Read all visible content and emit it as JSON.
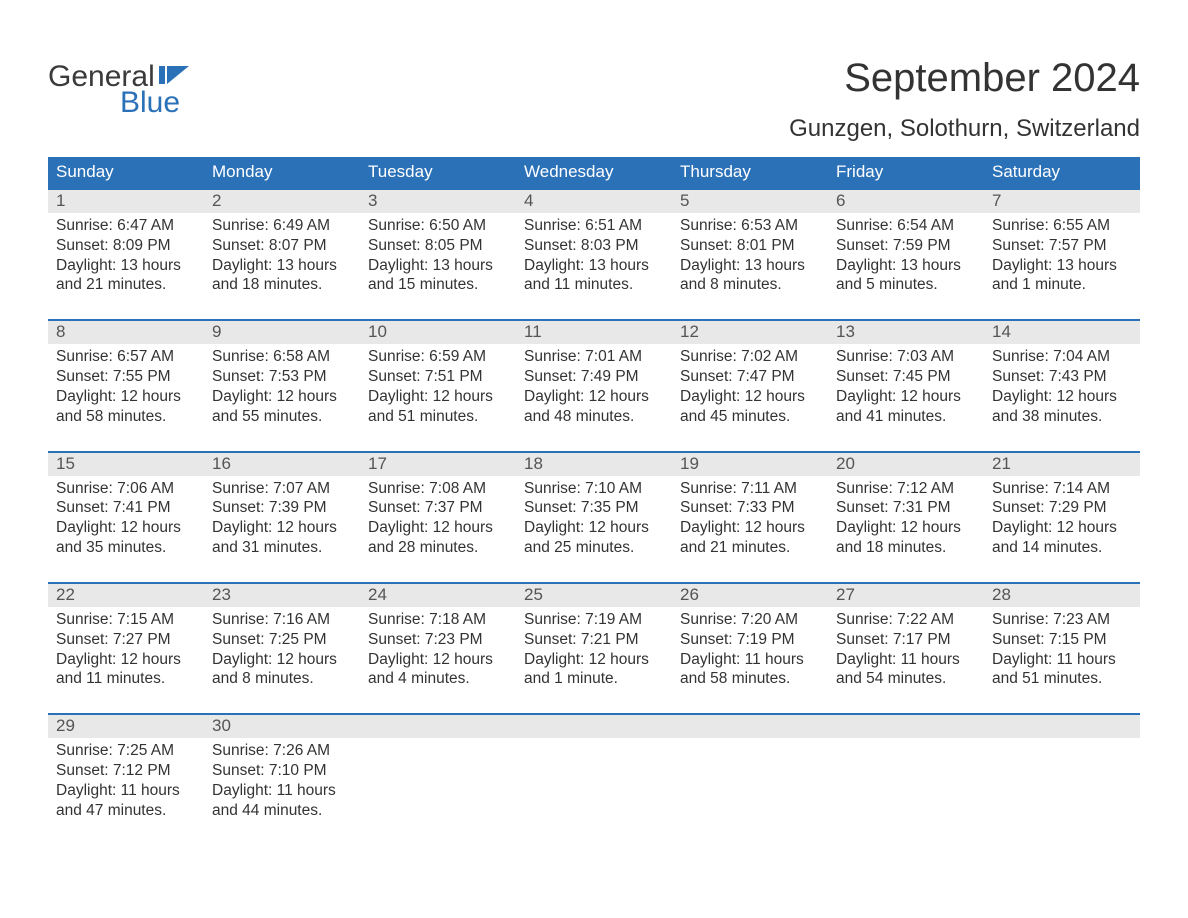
{
  "logo": {
    "word1": "General",
    "word2": "Blue",
    "flag_color": "#2b71b8",
    "text1_color": "#3a3a3a"
  },
  "title": "September 2024",
  "location": "Gunzgen, Solothurn, Switzerland",
  "colors": {
    "header_bg": "#2b71b8",
    "header_text": "#ffffff",
    "daynum_bg": "#e8e8e8",
    "week_border": "#2b71b8",
    "body_text": "#333333",
    "background": "#ffffff"
  },
  "weekdays": [
    "Sunday",
    "Monday",
    "Tuesday",
    "Wednesday",
    "Thursday",
    "Friday",
    "Saturday"
  ],
  "weeks": [
    [
      {
        "n": "1",
        "sunrise": "Sunrise: 6:47 AM",
        "sunset": "Sunset: 8:09 PM",
        "d1": "Daylight: 13 hours",
        "d2": "and 21 minutes."
      },
      {
        "n": "2",
        "sunrise": "Sunrise: 6:49 AM",
        "sunset": "Sunset: 8:07 PM",
        "d1": "Daylight: 13 hours",
        "d2": "and 18 minutes."
      },
      {
        "n": "3",
        "sunrise": "Sunrise: 6:50 AM",
        "sunset": "Sunset: 8:05 PM",
        "d1": "Daylight: 13 hours",
        "d2": "and 15 minutes."
      },
      {
        "n": "4",
        "sunrise": "Sunrise: 6:51 AM",
        "sunset": "Sunset: 8:03 PM",
        "d1": "Daylight: 13 hours",
        "d2": "and 11 minutes."
      },
      {
        "n": "5",
        "sunrise": "Sunrise: 6:53 AM",
        "sunset": "Sunset: 8:01 PM",
        "d1": "Daylight: 13 hours",
        "d2": "and 8 minutes."
      },
      {
        "n": "6",
        "sunrise": "Sunrise: 6:54 AM",
        "sunset": "Sunset: 7:59 PM",
        "d1": "Daylight: 13 hours",
        "d2": "and 5 minutes."
      },
      {
        "n": "7",
        "sunrise": "Sunrise: 6:55 AM",
        "sunset": "Sunset: 7:57 PM",
        "d1": "Daylight: 13 hours",
        "d2": "and 1 minute."
      }
    ],
    [
      {
        "n": "8",
        "sunrise": "Sunrise: 6:57 AM",
        "sunset": "Sunset: 7:55 PM",
        "d1": "Daylight: 12 hours",
        "d2": "and 58 minutes."
      },
      {
        "n": "9",
        "sunrise": "Sunrise: 6:58 AM",
        "sunset": "Sunset: 7:53 PM",
        "d1": "Daylight: 12 hours",
        "d2": "and 55 minutes."
      },
      {
        "n": "10",
        "sunrise": "Sunrise: 6:59 AM",
        "sunset": "Sunset: 7:51 PM",
        "d1": "Daylight: 12 hours",
        "d2": "and 51 minutes."
      },
      {
        "n": "11",
        "sunrise": "Sunrise: 7:01 AM",
        "sunset": "Sunset: 7:49 PM",
        "d1": "Daylight: 12 hours",
        "d2": "and 48 minutes."
      },
      {
        "n": "12",
        "sunrise": "Sunrise: 7:02 AM",
        "sunset": "Sunset: 7:47 PM",
        "d1": "Daylight: 12 hours",
        "d2": "and 45 minutes."
      },
      {
        "n": "13",
        "sunrise": "Sunrise: 7:03 AM",
        "sunset": "Sunset: 7:45 PM",
        "d1": "Daylight: 12 hours",
        "d2": "and 41 minutes."
      },
      {
        "n": "14",
        "sunrise": "Sunrise: 7:04 AM",
        "sunset": "Sunset: 7:43 PM",
        "d1": "Daylight: 12 hours",
        "d2": "and 38 minutes."
      }
    ],
    [
      {
        "n": "15",
        "sunrise": "Sunrise: 7:06 AM",
        "sunset": "Sunset: 7:41 PM",
        "d1": "Daylight: 12 hours",
        "d2": "and 35 minutes."
      },
      {
        "n": "16",
        "sunrise": "Sunrise: 7:07 AM",
        "sunset": "Sunset: 7:39 PM",
        "d1": "Daylight: 12 hours",
        "d2": "and 31 minutes."
      },
      {
        "n": "17",
        "sunrise": "Sunrise: 7:08 AM",
        "sunset": "Sunset: 7:37 PM",
        "d1": "Daylight: 12 hours",
        "d2": "and 28 minutes."
      },
      {
        "n": "18",
        "sunrise": "Sunrise: 7:10 AM",
        "sunset": "Sunset: 7:35 PM",
        "d1": "Daylight: 12 hours",
        "d2": "and 25 minutes."
      },
      {
        "n": "19",
        "sunrise": "Sunrise: 7:11 AM",
        "sunset": "Sunset: 7:33 PM",
        "d1": "Daylight: 12 hours",
        "d2": "and 21 minutes."
      },
      {
        "n": "20",
        "sunrise": "Sunrise: 7:12 AM",
        "sunset": "Sunset: 7:31 PM",
        "d1": "Daylight: 12 hours",
        "d2": "and 18 minutes."
      },
      {
        "n": "21",
        "sunrise": "Sunrise: 7:14 AM",
        "sunset": "Sunset: 7:29 PM",
        "d1": "Daylight: 12 hours",
        "d2": "and 14 minutes."
      }
    ],
    [
      {
        "n": "22",
        "sunrise": "Sunrise: 7:15 AM",
        "sunset": "Sunset: 7:27 PM",
        "d1": "Daylight: 12 hours",
        "d2": "and 11 minutes."
      },
      {
        "n": "23",
        "sunrise": "Sunrise: 7:16 AM",
        "sunset": "Sunset: 7:25 PM",
        "d1": "Daylight: 12 hours",
        "d2": "and 8 minutes."
      },
      {
        "n": "24",
        "sunrise": "Sunrise: 7:18 AM",
        "sunset": "Sunset: 7:23 PM",
        "d1": "Daylight: 12 hours",
        "d2": "and 4 minutes."
      },
      {
        "n": "25",
        "sunrise": "Sunrise: 7:19 AM",
        "sunset": "Sunset: 7:21 PM",
        "d1": "Daylight: 12 hours",
        "d2": "and 1 minute."
      },
      {
        "n": "26",
        "sunrise": "Sunrise: 7:20 AM",
        "sunset": "Sunset: 7:19 PM",
        "d1": "Daylight: 11 hours",
        "d2": "and 58 minutes."
      },
      {
        "n": "27",
        "sunrise": "Sunrise: 7:22 AM",
        "sunset": "Sunset: 7:17 PM",
        "d1": "Daylight: 11 hours",
        "d2": "and 54 minutes."
      },
      {
        "n": "28",
        "sunrise": "Sunrise: 7:23 AM",
        "sunset": "Sunset: 7:15 PM",
        "d1": "Daylight: 11 hours",
        "d2": "and 51 minutes."
      }
    ],
    [
      {
        "n": "29",
        "sunrise": "Sunrise: 7:25 AM",
        "sunset": "Sunset: 7:12 PM",
        "d1": "Daylight: 11 hours",
        "d2": "and 47 minutes."
      },
      {
        "n": "30",
        "sunrise": "Sunrise: 7:26 AM",
        "sunset": "Sunset: 7:10 PM",
        "d1": "Daylight: 11 hours",
        "d2": "and 44 minutes."
      },
      null,
      null,
      null,
      null,
      null
    ]
  ]
}
